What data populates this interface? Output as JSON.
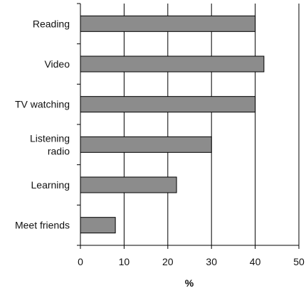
{
  "chart_data": {
    "type": "bar",
    "orientation": "horizontal",
    "categories": [
      "Reading",
      "Video",
      "TV watching",
      "Listening radio",
      "Learning",
      "Meet friends"
    ],
    "category_lines": [
      [
        "Reading"
      ],
      [
        "Video"
      ],
      [
        "TV watching"
      ],
      [
        "Listening",
        "radio"
      ],
      [
        "Learning"
      ],
      [
        "Meet friends"
      ]
    ],
    "values": [
      40,
      42,
      40,
      30,
      22,
      8
    ],
    "xlabel": "%",
    "ylabel": "",
    "xlim": [
      0,
      50
    ],
    "xticks": [
      0,
      10,
      20,
      30,
      40,
      50
    ],
    "grid": "vertical",
    "legend": "none",
    "colors": {
      "bar_fill": "#8c8c8c",
      "bar_stroke": "#000000",
      "grid": "#000000",
      "axis": "#000000"
    }
  }
}
